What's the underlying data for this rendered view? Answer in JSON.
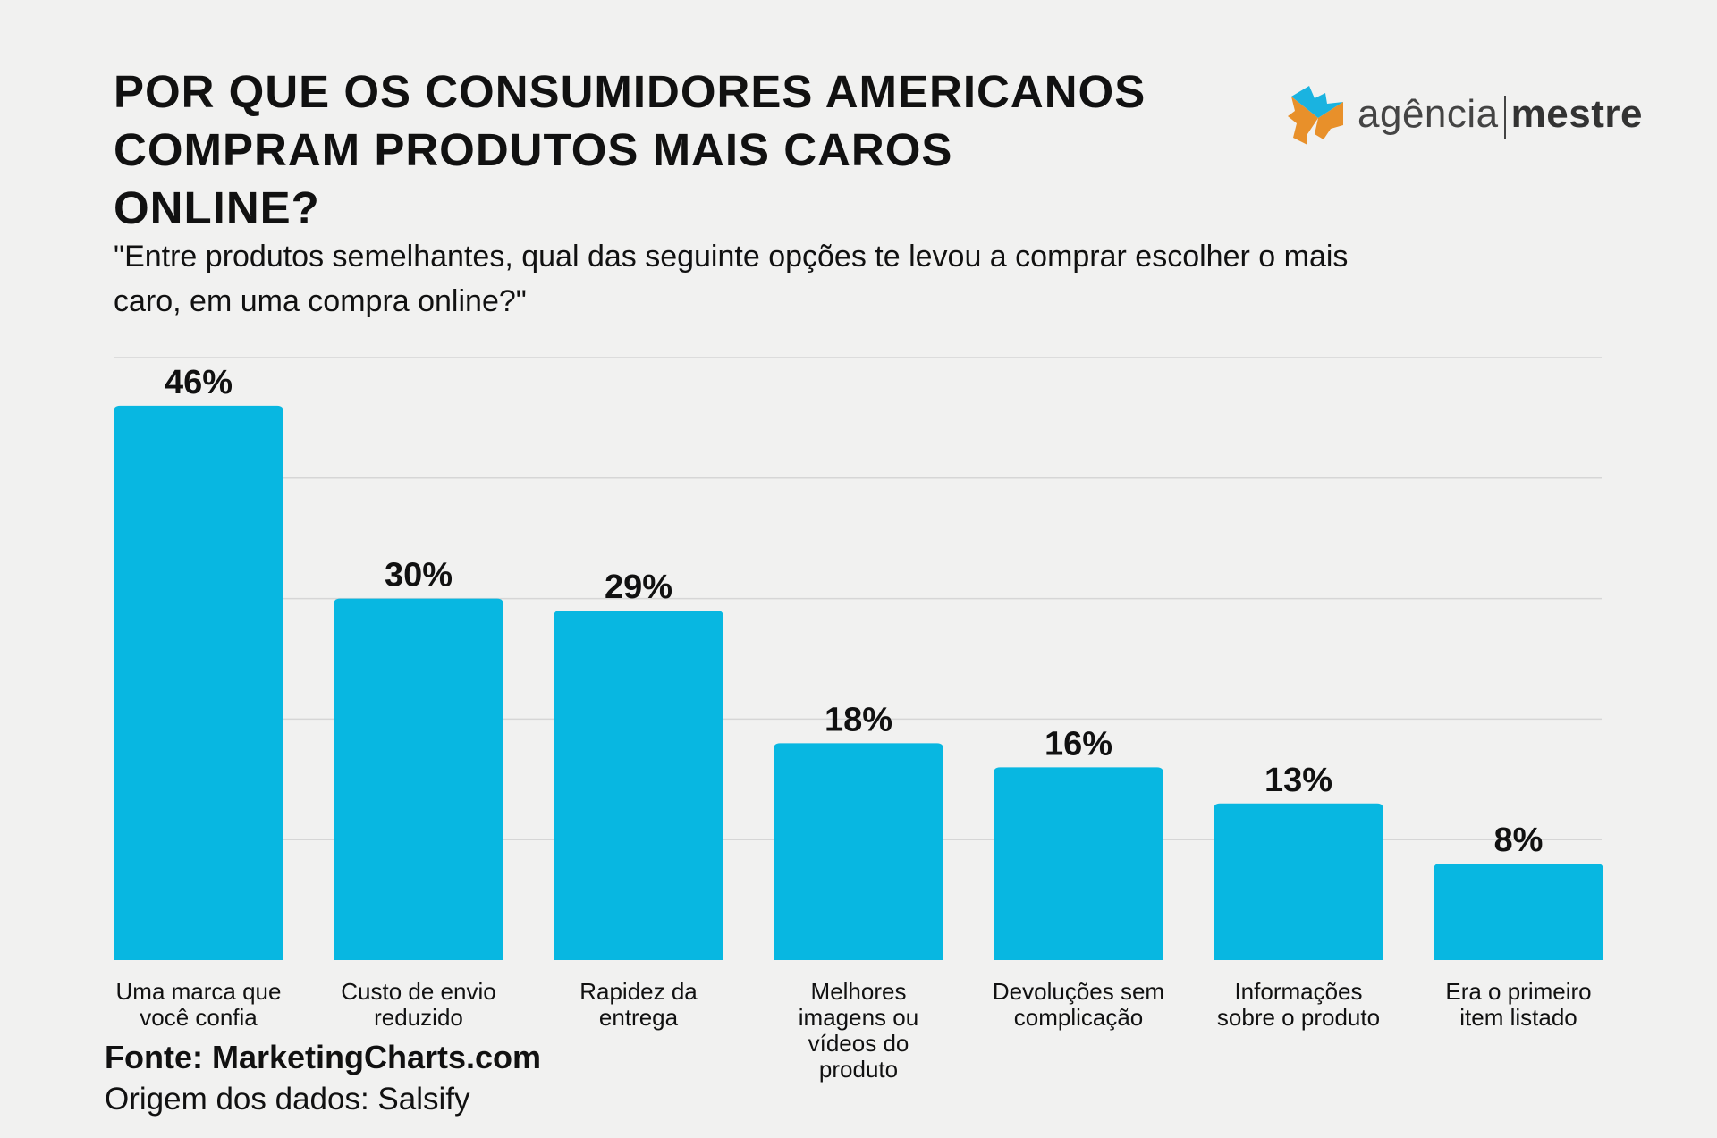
{
  "title_lines": [
    "POR QUE OS CONSUMIDORES AMERICANOS",
    "COMPRAM PRODUTOS MAIS CAROS",
    "ONLINE?"
  ],
  "subtitle_lines": [
    "\"Entre produtos semelhantes, qual das seguinte opções te levou a comprar escolher o mais",
    "caro, em uma compra online?\""
  ],
  "logo": {
    "text_light": "agência",
    "text_bold": "mestre",
    "colors": [
      "#1ab3e0",
      "#e8902a"
    ]
  },
  "source": "Fonte: MarketingCharts.com",
  "origin": "Origem dos dados: Salsify",
  "chart_data": {
    "type": "bar",
    "categories": [
      [
        "Uma marca que",
        "você confia"
      ],
      [
        "Custo de envio",
        "reduzido"
      ],
      [
        "Rapidez da",
        "entrega"
      ],
      [
        "Melhores",
        "imagens ou",
        "vídeos do",
        "produto"
      ],
      [
        "Devoluções sem",
        "complicação"
      ],
      [
        "Informações",
        "sobre o produto"
      ],
      [
        "Era o primeiro",
        "item listado"
      ]
    ],
    "values": [
      46,
      30,
      29,
      18,
      16,
      13,
      8
    ],
    "data_labels": [
      "46%",
      "30%",
      "29%",
      "18%",
      "16%",
      "13%",
      "8%"
    ],
    "ylim": [
      0,
      50
    ],
    "grid": true,
    "grid_step": 10,
    "bar_color": "#08b7e1"
  }
}
